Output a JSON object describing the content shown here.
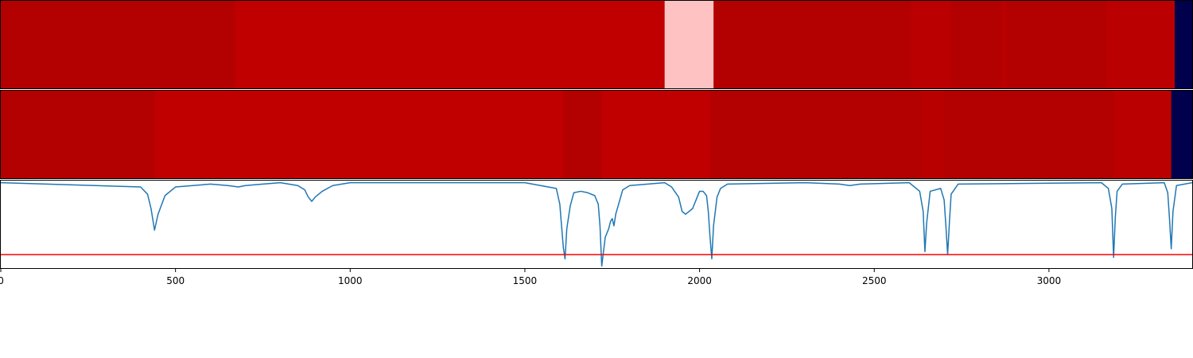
{
  "chart_data": [
    {
      "type": "heatmap",
      "xlim": [
        0,
        3410
      ],
      "colormap": "seismic",
      "color_range": [
        -1,
        1
      ],
      "segments": [
        {
          "start": 0,
          "end": 670,
          "value": 0.8
        },
        {
          "start": 670,
          "end": 1900,
          "value": 0.75
        },
        {
          "start": 1900,
          "end": 2040,
          "value": 0.12
        },
        {
          "start": 2040,
          "end": 2605,
          "value": 0.8
        },
        {
          "start": 2605,
          "end": 2720,
          "value": 0.77
        },
        {
          "start": 2720,
          "end": 2865,
          "value": 0.8
        },
        {
          "start": 2865,
          "end": 2880,
          "value": 0.77
        },
        {
          "start": 2880,
          "end": 3165,
          "value": 0.8
        },
        {
          "start": 3165,
          "end": 3360,
          "value": 0.77
        },
        {
          "start": 3360,
          "end": 3410,
          "value": -1.0
        }
      ]
    },
    {
      "type": "heatmap",
      "xlim": [
        0,
        3410
      ],
      "colormap": "seismic",
      "color_range": [
        -1,
        1
      ],
      "segments": [
        {
          "start": 0,
          "end": 440,
          "value": 0.8
        },
        {
          "start": 440,
          "end": 1610,
          "value": 0.75
        },
        {
          "start": 1610,
          "end": 1720,
          "value": 0.8
        },
        {
          "start": 1720,
          "end": 2030,
          "value": 0.75
        },
        {
          "start": 2030,
          "end": 2635,
          "value": 0.8
        },
        {
          "start": 2635,
          "end": 2700,
          "value": 0.78
        },
        {
          "start": 2700,
          "end": 3185,
          "value": 0.8
        },
        {
          "start": 3185,
          "end": 3350,
          "value": 0.77
        },
        {
          "start": 3350,
          "end": 3410,
          "value": -1.0
        }
      ]
    },
    {
      "type": "line",
      "xlim": [
        0,
        3410
      ],
      "ylim": [
        -0.6,
        0.02
      ],
      "xticks": [
        0,
        500,
        1000,
        1500,
        2000,
        2500,
        3000
      ],
      "series": [
        {
          "color": "#1f77b4",
          "x": [
            0,
            400,
            420,
            430,
            440,
            450,
            470,
            500,
            600,
            650,
            680,
            700,
            750,
            800,
            850,
            870,
            880,
            890,
            900,
            920,
            950,
            1000,
            1500,
            1590,
            1600,
            1610,
            1615,
            1620,
            1630,
            1640,
            1660,
            1680,
            1700,
            1710,
            1715,
            1720,
            1725,
            1730,
            1740,
            1745,
            1750,
            1755,
            1760,
            1780,
            1800,
            1900,
            1920,
            1940,
            1950,
            1960,
            1980,
            2000,
            2010,
            2020,
            2025,
            2030,
            2035,
            2040,
            2050,
            2060,
            2080,
            2300,
            2400,
            2430,
            2460,
            2600,
            2630,
            2640,
            2645,
            2650,
            2660,
            2690,
            2700,
            2705,
            2710,
            2715,
            2720,
            2740,
            3150,
            3170,
            3180,
            3185,
            3190,
            3195,
            3210,
            3330,
            3340,
            3345,
            3350,
            3355,
            3365,
            3410
          ],
          "y": [
            0,
            -0.03,
            -0.08,
            -0.18,
            -0.33,
            -0.22,
            -0.09,
            -0.03,
            -0.01,
            -0.02,
            -0.03,
            -0.02,
            -0.01,
            0,
            -0.02,
            -0.05,
            -0.1,
            -0.13,
            -0.1,
            -0.06,
            -0.02,
            0,
            0,
            -0.04,
            -0.15,
            -0.45,
            -0.53,
            -0.32,
            -0.16,
            -0.07,
            -0.06,
            -0.07,
            -0.09,
            -0.15,
            -0.3,
            -0.58,
            -0.48,
            -0.38,
            -0.32,
            -0.27,
            -0.25,
            -0.3,
            -0.22,
            -0.05,
            -0.02,
            0,
            -0.03,
            -0.1,
            -0.2,
            -0.22,
            -0.18,
            -0.06,
            -0.06,
            -0.09,
            -0.2,
            -0.38,
            -0.53,
            -0.3,
            -0.1,
            -0.04,
            -0.01,
            0,
            -0.01,
            -0.02,
            -0.01,
            0,
            -0.06,
            -0.2,
            -0.48,
            -0.28,
            -0.06,
            -0.04,
            -0.12,
            -0.3,
            -0.5,
            -0.28,
            -0.08,
            -0.01,
            0,
            -0.04,
            -0.18,
            -0.52,
            -0.24,
            -0.06,
            -0.01,
            0,
            -0.07,
            -0.25,
            -0.46,
            -0.2,
            -0.02,
            0
          ]
        },
        {
          "color": "#ff0000",
          "x": [
            0,
            3410
          ],
          "y": [
            -0.5,
            -0.5
          ]
        }
      ]
    }
  ]
}
